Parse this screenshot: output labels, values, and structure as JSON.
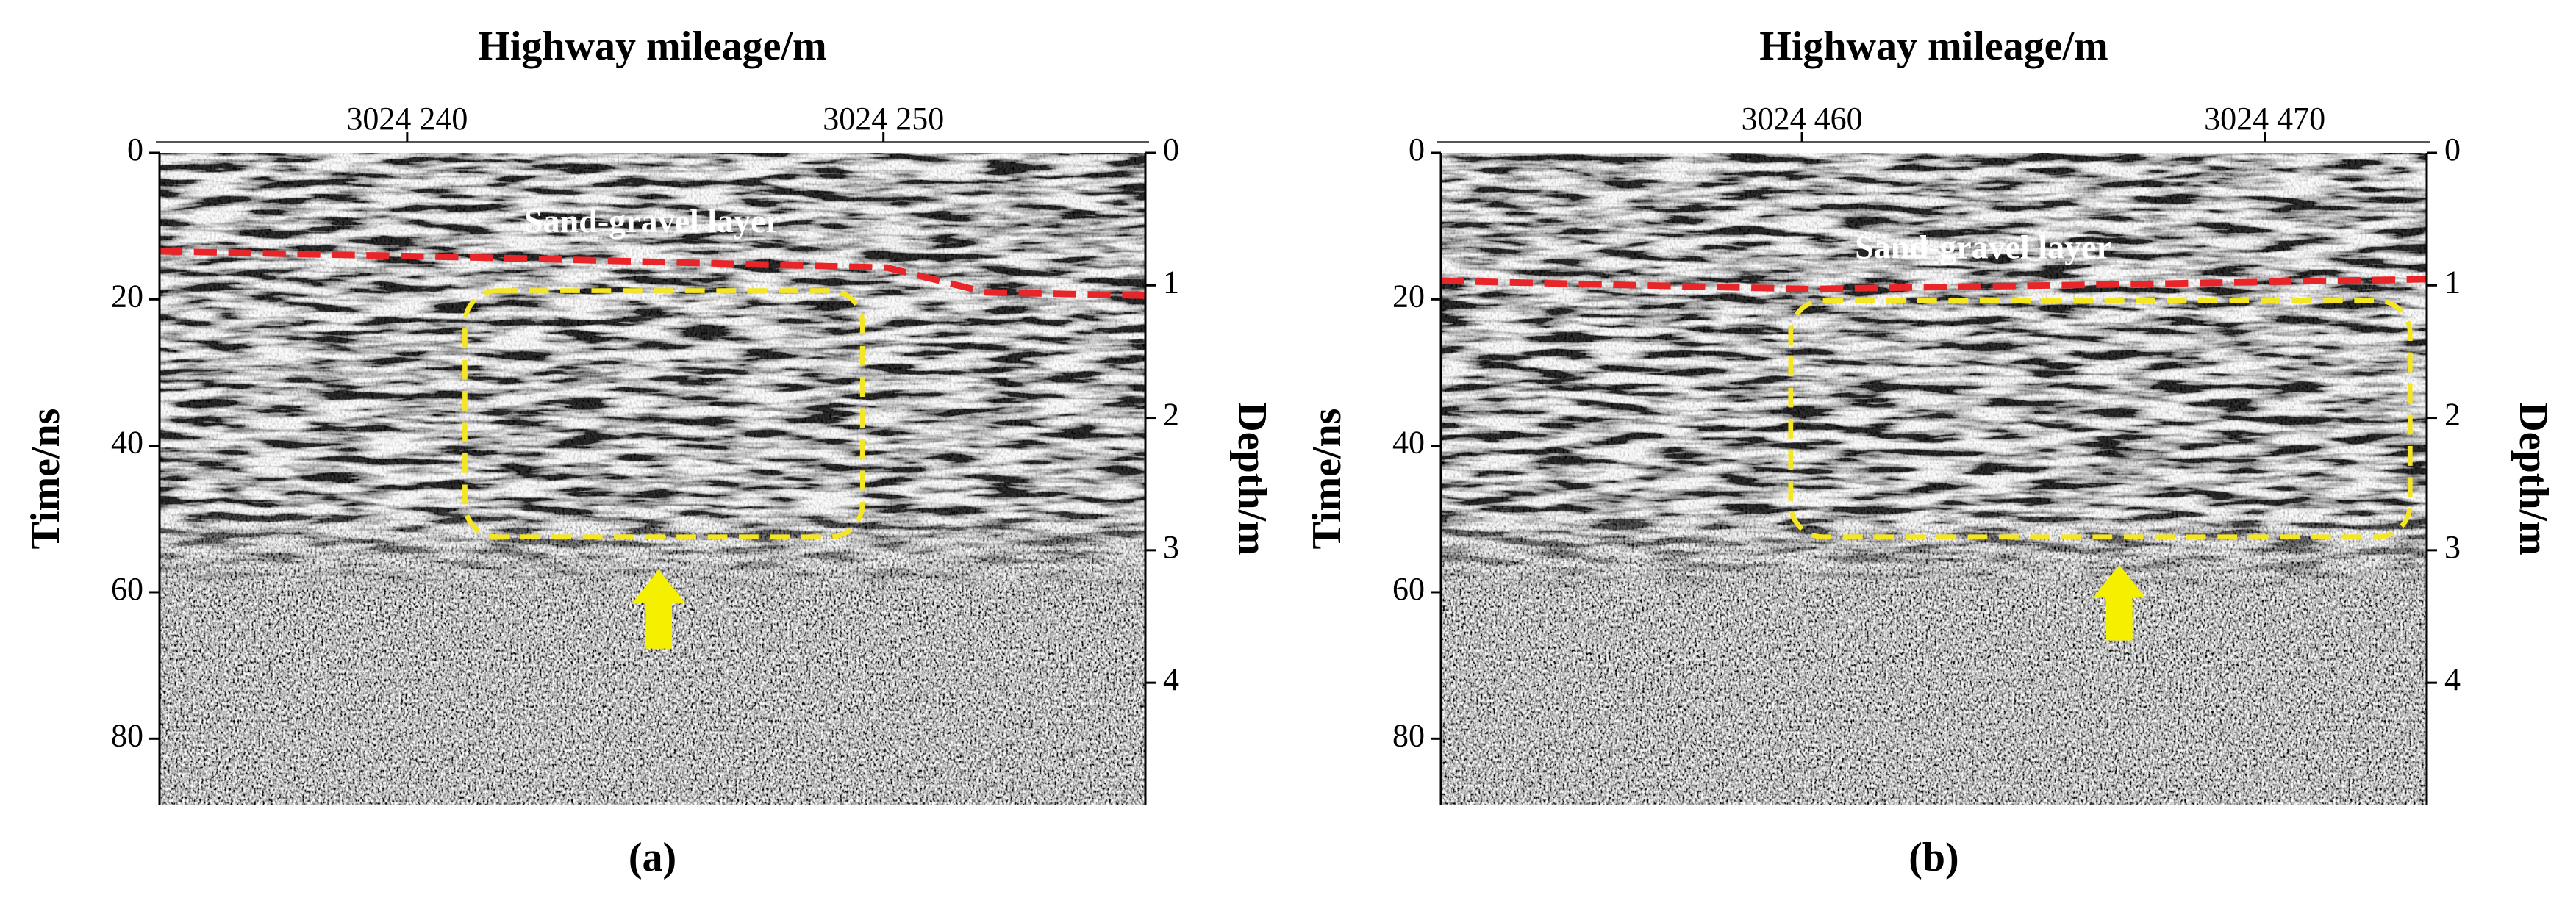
{
  "chart_data": [
    {
      "type": "radargram",
      "label": "(a)",
      "xlabel": "Highway mileage/m",
      "ylabel": "Time/ns",
      "y2label": "Depth/m",
      "annotation": "Sand-gravel layer",
      "xlim": [
        3024234.8,
        3024255.5
      ],
      "xticks": [
        {
          "value": 3024240,
          "label": "3024 240"
        },
        {
          "value": 3024250,
          "label": "3024 250"
        }
      ],
      "ylim": [
        0,
        89
      ],
      "yticks": [
        0,
        20,
        40,
        60,
        80
      ],
      "yinvert": true,
      "y2lim": [
        0,
        4.92
      ],
      "y2ticks": [
        0,
        1,
        2,
        3,
        4
      ]
    },
    {
      "type": "radargram",
      "label": "(b)",
      "xlabel": "Highway mileage/m",
      "ylabel": "Time/ns",
      "y2label": "Depth/m",
      "annotation": "Sand-gravel layer",
      "xlim": [
        3024452.2,
        3024473.5
      ],
      "xticks": [
        {
          "value": 3024460,
          "label": "3024 460"
        },
        {
          "value": 3024470,
          "label": "3024 470"
        }
      ],
      "ylim": [
        0,
        89
      ],
      "yticks": [
        0,
        20,
        40,
        60,
        80
      ],
      "yinvert": true,
      "y2lim": [
        0,
        4.92
      ],
      "y2ticks": [
        0,
        1,
        2,
        3,
        4
      ]
    }
  ]
}
